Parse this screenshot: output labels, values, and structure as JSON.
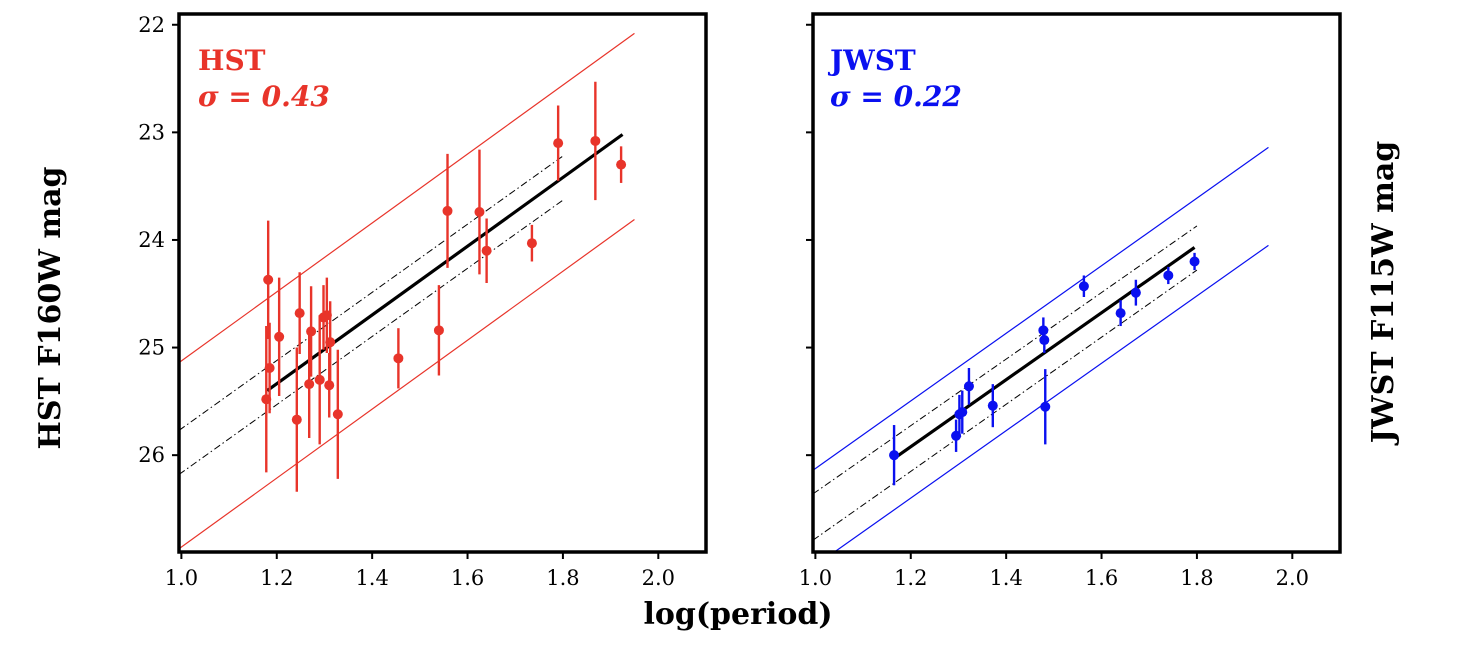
{
  "figure": {
    "xlabel": "log(period)",
    "colors": {
      "hst": "#e8342a",
      "jwst": "#0a10f0",
      "fit": "#000000"
    }
  },
  "chart_data": [
    {
      "type": "scatter",
      "name": "hst",
      "title": "HST",
      "sigma_label": "σ = 0.43",
      "sigma": 0.43,
      "ylabel": "HST F160W mag",
      "xlabel": "log(period)",
      "xlim": [
        0.995,
        2.1
      ],
      "ylim": [
        26.9,
        21.9
      ],
      "xticks": [
        "1.0",
        "1.2",
        "1.4",
        "1.6",
        "1.8",
        "2.0"
      ],
      "yticks": [
        "22",
        "23",
        "24",
        "25",
        "26"
      ],
      "ytick_values": [
        22,
        23,
        24,
        25,
        26
      ],
      "fit": {
        "x": [
          1.18,
          1.925
        ],
        "y": [
          25.4,
          23.02
        ]
      },
      "inner_bounds": [
        {
          "x": [
            0.995,
            1.8
          ],
          "y": [
            25.77,
            23.22
          ]
        },
        {
          "x": [
            0.995,
            1.8
          ],
          "y": [
            26.18,
            23.63
          ]
        }
      ],
      "outer_bounds": [
        {
          "x": [
            0.995,
            1.95
          ],
          "y": [
            25.14,
            22.08
          ]
        },
        {
          "x": [
            0.995,
            1.95
          ],
          "y": [
            26.87,
            23.81
          ]
        }
      ],
      "points": [
        {
          "x": 1.178,
          "y": 25.48,
          "err": 0.68
        },
        {
          "x": 1.182,
          "y": 24.37,
          "err": 0.55
        },
        {
          "x": 1.185,
          "y": 25.19,
          "err": 0.42
        },
        {
          "x": 1.205,
          "y": 24.9,
          "err": 0.55
        },
        {
          "x": 1.242,
          "y": 25.67,
          "err": 0.67
        },
        {
          "x": 1.248,
          "y": 24.68,
          "err": 0.38
        },
        {
          "x": 1.268,
          "y": 25.34,
          "err": 0.5
        },
        {
          "x": 1.272,
          "y": 24.85,
          "err": 0.42
        },
        {
          "x": 1.29,
          "y": 25.3,
          "err": 0.6
        },
        {
          "x": 1.298,
          "y": 24.72,
          "err": 0.3
        },
        {
          "x": 1.305,
          "y": 24.7,
          "err": 0.35
        },
        {
          "x": 1.31,
          "y": 25.35,
          "err": 0.3
        },
        {
          "x": 1.312,
          "y": 24.95,
          "err": 0.38
        },
        {
          "x": 1.328,
          "y": 25.62,
          "err": 0.6
        },
        {
          "x": 1.455,
          "y": 25.1,
          "err": 0.28
        },
        {
          "x": 1.54,
          "y": 24.84,
          "err": 0.42
        },
        {
          "x": 1.558,
          "y": 23.73,
          "err": 0.53
        },
        {
          "x": 1.625,
          "y": 23.74,
          "err": 0.58
        },
        {
          "x": 1.64,
          "y": 24.1,
          "err": 0.3
        },
        {
          "x": 1.735,
          "y": 24.03,
          "err": 0.17
        },
        {
          "x": 1.79,
          "y": 23.1,
          "err": 0.35
        },
        {
          "x": 1.868,
          "y": 23.08,
          "err": 0.55
        },
        {
          "x": 1.922,
          "y": 23.3,
          "err": 0.17
        }
      ]
    },
    {
      "type": "scatter",
      "name": "jwst",
      "title": "JWST",
      "sigma_label": "σ = 0.22",
      "sigma": 0.22,
      "ylabel": "JWST F115W mag",
      "xlabel": "log(period)",
      "xlim": [
        0.995,
        2.1
      ],
      "ylim": [
        26.9,
        21.9
      ],
      "xticks": [
        "1.0",
        "1.2",
        "1.4",
        "1.6",
        "1.8",
        "2.0"
      ],
      "yticks": [
        "",
        "",
        "",
        "",
        ""
      ],
      "ytick_values": [
        22,
        23,
        24,
        25,
        26
      ],
      "fit": {
        "x": [
          1.165,
          1.795
        ],
        "y": [
          26.03,
          24.07
        ]
      },
      "inner_bounds": [
        {
          "x": [
            0.995,
            1.8
          ],
          "y": [
            26.36,
            23.87
          ]
        },
        {
          "x": [
            0.995,
            1.8
          ],
          "y": [
            26.79,
            24.28
          ]
        }
      ],
      "outer_bounds": [
        {
          "x": [
            0.995,
            1.95
          ],
          "y": [
            26.14,
            23.14
          ]
        },
        {
          "x": [
            1.04,
            1.95
          ],
          "y": [
            26.9,
            24.05
          ]
        }
      ],
      "points": [
        {
          "x": 1.165,
          "y": 26.0,
          "err": 0.28
        },
        {
          "x": 1.295,
          "y": 25.82,
          "err": 0.15
        },
        {
          "x": 1.302,
          "y": 25.62,
          "err": 0.18
        },
        {
          "x": 1.308,
          "y": 25.6,
          "err": 0.2
        },
        {
          "x": 1.322,
          "y": 25.36,
          "err": 0.17
        },
        {
          "x": 1.372,
          "y": 25.54,
          "err": 0.2
        },
        {
          "x": 1.478,
          "y": 24.84,
          "err": 0.12
        },
        {
          "x": 1.48,
          "y": 24.93,
          "err": 0.12
        },
        {
          "x": 1.482,
          "y": 25.55,
          "err": 0.35
        },
        {
          "x": 1.563,
          "y": 24.43,
          "err": 0.1
        },
        {
          "x": 1.64,
          "y": 24.68,
          "err": 0.12
        },
        {
          "x": 1.672,
          "y": 24.49,
          "err": 0.12
        },
        {
          "x": 1.74,
          "y": 24.33,
          "err": 0.08
        },
        {
          "x": 1.795,
          "y": 24.2,
          "err": 0.08
        }
      ]
    }
  ]
}
